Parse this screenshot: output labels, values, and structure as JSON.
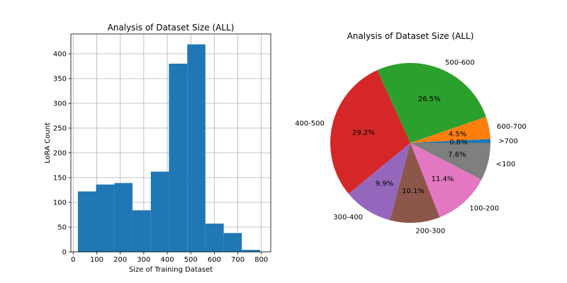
{
  "chart_data": [
    {
      "type": "bar",
      "title": "Analysis of Dataset Size (ALL)",
      "xlabel": "Size of Training Dataset",
      "ylabel": "LoRA Count",
      "bins": [
        {
          "start": 20,
          "end": 97,
          "value": 122
        },
        {
          "start": 97,
          "end": 175,
          "value": 136
        },
        {
          "start": 175,
          "end": 252,
          "value": 139
        },
        {
          "start": 252,
          "end": 330,
          "value": 84
        },
        {
          "start": 330,
          "end": 407,
          "value": 162
        },
        {
          "start": 407,
          "end": 485,
          "value": 380
        },
        {
          "start": 485,
          "end": 562,
          "value": 419
        },
        {
          "start": 562,
          "end": 640,
          "value": 57
        },
        {
          "start": 640,
          "end": 717,
          "value": 38
        },
        {
          "start": 717,
          "end": 795,
          "value": 4
        }
      ],
      "xlim": [
        -10,
        840
      ],
      "ylim": [
        0,
        440
      ],
      "xticks": [
        0,
        100,
        200,
        300,
        400,
        500,
        600,
        700,
        800
      ],
      "yticks": [
        0,
        50,
        100,
        150,
        200,
        250,
        300,
        350,
        400
      ],
      "grid": true,
      "color": "#1f77b4"
    },
    {
      "type": "pie",
      "title": "Analysis of Dataset Size (ALL)",
      "slices": [
        {
          "label": ">700",
          "value": 0.8,
          "pct": "0.8%",
          "color": "#1f77b4"
        },
        {
          "label": "600-700",
          "value": 4.5,
          "pct": "4.5%",
          "color": "#ff7f0e"
        },
        {
          "label": "500-600",
          "value": 26.5,
          "pct": "26.5%",
          "color": "#2ca02c"
        },
        {
          "label": "400-500",
          "value": 29.2,
          "pct": "29.2%",
          "color": "#d62728"
        },
        {
          "label": "300-400",
          "value": 9.9,
          "pct": "9.9%",
          "color": "#9467bd"
        },
        {
          "label": "200-300",
          "value": 10.1,
          "pct": "10.1%",
          "color": "#8c564b"
        },
        {
          "label": "100-200",
          "value": 11.4,
          "pct": "11.4%",
          "color": "#e377c2"
        },
        {
          "label": "<100",
          "value": 7.6,
          "pct": "7.6%",
          "color": "#7f7f7f"
        }
      ],
      "start_angle": 0,
      "direction": "counterclockwise"
    }
  ]
}
